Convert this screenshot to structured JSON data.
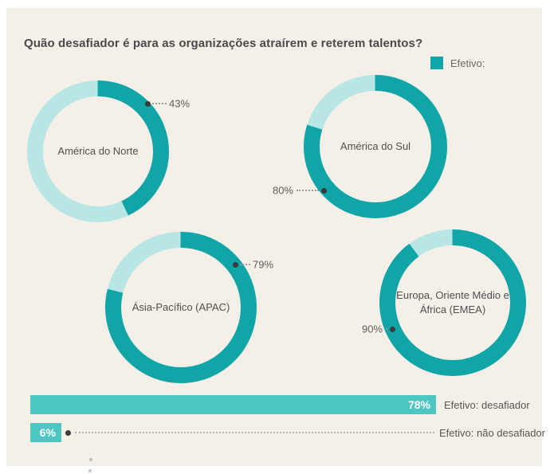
{
  "header": {
    "title": "Quão desafiador é para as organizações atraírem e reterem talentos?"
  },
  "legend": {
    "label": "Efetivo:",
    "swatch_color": "#11a5a8"
  },
  "colors": {
    "background": "#ffffff",
    "panel": "#f4f0e8",
    "ring_filled": "#11a5a8",
    "ring_remainder": "#b7e6e5",
    "bar": "#4dc7c4",
    "title_text": "#4a4a4a",
    "label_text": "#5d5d5d"
  },
  "chart_data": [
    {
      "type": "pie",
      "variant": "donut",
      "units": "percent",
      "title": "Quão desafiador é para as organizações atraírem e reterem talentos?",
      "legend": [
        "Efetivo:"
      ],
      "legend_position": "top-right",
      "series": [
        {
          "label": "América do Norte",
          "value": 43,
          "value_label": "43%"
        },
        {
          "label": "América do Sul",
          "value": 80,
          "value_label": "80%"
        },
        {
          "label": "Ásia-Pacífico (APAC)",
          "value": 79,
          "value_label": "79%"
        },
        {
          "label": "Europa, Oriente Médio e África (EMEA)",
          "value": 90,
          "value_label": "90%"
        }
      ]
    },
    {
      "type": "bar",
      "orientation": "horizontal",
      "categories": [
        "Efetivo: desafiador",
        "Efetivo: não desafiador"
      ],
      "values": [
        78,
        6
      ],
      "value_labels": [
        "78%",
        "6%"
      ],
      "xlim": [
        0,
        100
      ],
      "grid": false
    }
  ]
}
